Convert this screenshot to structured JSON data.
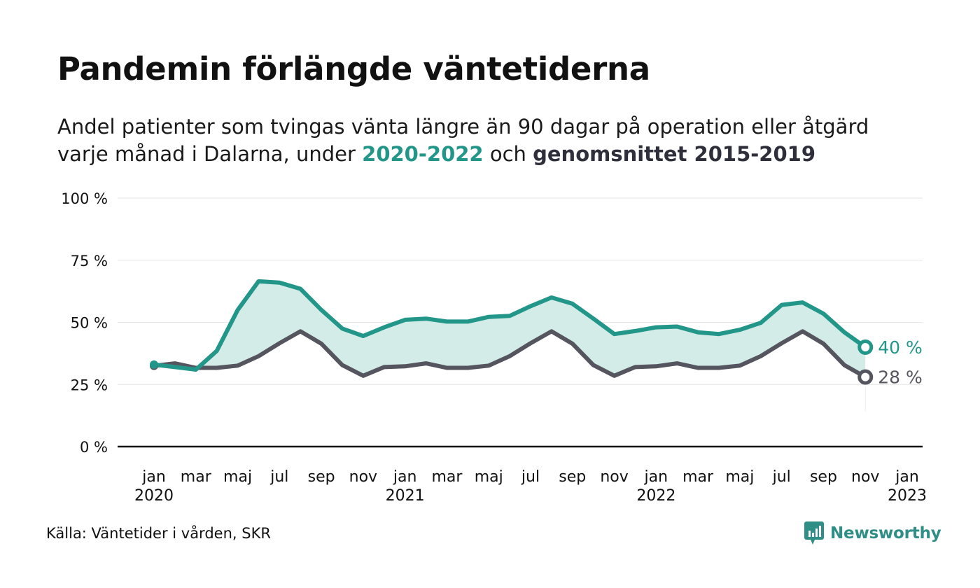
{
  "title": "Pandemin förlängde väntetiderna",
  "subtitle": {
    "line1": "Andel patienter som tvingas vänta längre än 90 dagar på operation eller åtgärd",
    "line2_prefix": "varje månad i Dalarna, under ",
    "highlight_current": "2020-2022",
    "line2_middle": " och ",
    "highlight_average": "genomsnittet 2015-2019"
  },
  "source": "Källa: Väntetider i vården, SKR",
  "brand": {
    "name": "Newsworthy",
    "icon": "newsworthy-logo-icon"
  },
  "colors": {
    "current": "#23968a",
    "average": "#55555f",
    "band": "#d3ece8",
    "axis": "#111111",
    "grid": "#e6e6e6"
  },
  "chart_data": {
    "type": "line",
    "ylim": [
      0,
      100
    ],
    "yticks": [
      {
        "value": 0,
        "label": "0 %"
      },
      {
        "value": 25,
        "label": "25 %"
      },
      {
        "value": 50,
        "label": "50 %"
      },
      {
        "value": 75,
        "label": "75 %"
      },
      {
        "value": 100,
        "label": "100 %"
      }
    ],
    "xlim": [
      0,
      36
    ],
    "xticks": [
      {
        "pos": 0,
        "month": "jan",
        "year": "2020"
      },
      {
        "pos": 2,
        "month": "mar",
        "year": ""
      },
      {
        "pos": 4,
        "month": "maj",
        "year": ""
      },
      {
        "pos": 6,
        "month": "jul",
        "year": ""
      },
      {
        "pos": 8,
        "month": "sep",
        "year": ""
      },
      {
        "pos": 10,
        "month": "nov",
        "year": ""
      },
      {
        "pos": 12,
        "month": "jan",
        "year": "2021"
      },
      {
        "pos": 14,
        "month": "mar",
        "year": ""
      },
      {
        "pos": 16,
        "month": "maj",
        "year": ""
      },
      {
        "pos": 18,
        "month": "jul",
        "year": ""
      },
      {
        "pos": 20,
        "month": "sep",
        "year": ""
      },
      {
        "pos": 22,
        "month": "nov",
        "year": ""
      },
      {
        "pos": 24,
        "month": "jan",
        "year": "2022"
      },
      {
        "pos": 26,
        "month": "mar",
        "year": ""
      },
      {
        "pos": 28,
        "month": "maj",
        "year": ""
      },
      {
        "pos": 30,
        "month": "jul",
        "year": ""
      },
      {
        "pos": 32,
        "month": "sep",
        "year": ""
      },
      {
        "pos": 34,
        "month": "nov",
        "year": ""
      },
      {
        "pos": 36,
        "month": "jan",
        "year": "2023"
      }
    ],
    "series": [
      {
        "key": "current",
        "values": [
          33,
          32,
          31,
          38.5,
          55,
          66.5,
          66,
          63.5,
          55,
          47.5,
          44.5,
          48,
          51,
          51.5,
          50.3,
          50.3,
          52.2,
          52.6,
          56.5,
          60,
          57.5,
          51.5,
          45.3,
          46.5,
          48,
          48.3,
          46,
          45.3,
          47,
          49.8,
          57,
          58,
          53.5,
          46,
          40
        ],
        "end_label": "40 %"
      },
      {
        "key": "average",
        "values": [
          32.5,
          33.5,
          31.7,
          31.7,
          32.6,
          36.4,
          41.6,
          46.4,
          41.4,
          32.8,
          28.5,
          32,
          32.3,
          33.5,
          31.7,
          31.7,
          32.6,
          36.4,
          41.6,
          46.4,
          41.4,
          32.8,
          28.5,
          32,
          32.3,
          33.5,
          31.7,
          31.7,
          32.6,
          36.4,
          41.6,
          46.4,
          41.4,
          32.8,
          28
        ],
        "end_label": "28 %"
      }
    ]
  }
}
